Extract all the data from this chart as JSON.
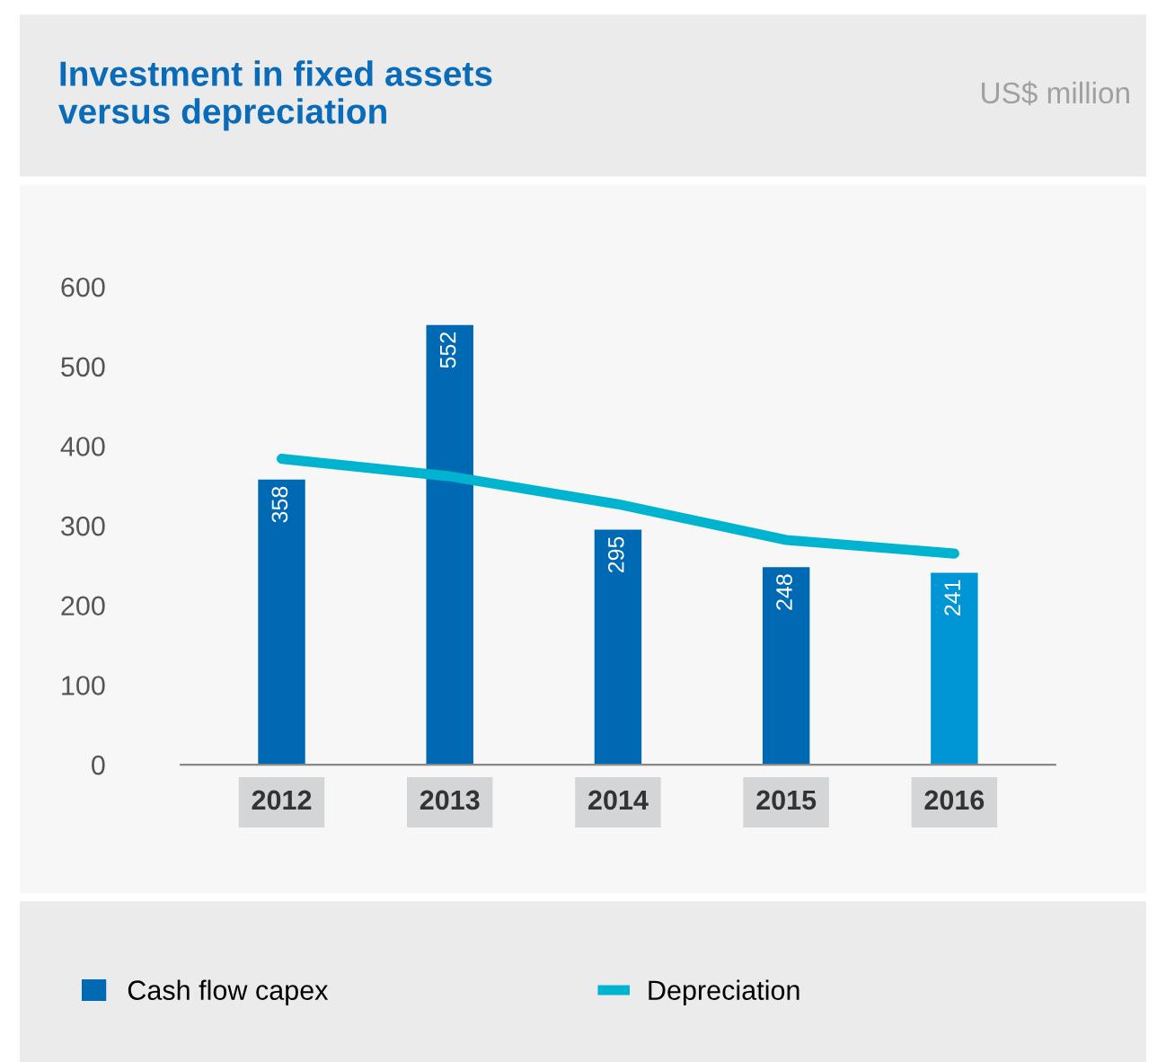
{
  "chart_data": {
    "type": "bar",
    "title": "Investment in fixed assets\nversus depreciation",
    "subtitle": "US$ million",
    "categories": [
      "2012",
      "2013",
      "2014",
      "2015",
      "2016"
    ],
    "series": [
      {
        "name": "Cash flow capex",
        "color": "#0069b4",
        "colors": [
          "#0069b4",
          "#0069b4",
          "#0069b4",
          "#0069b4",
          "#0096d6"
        ],
        "values": [
          358,
          552,
          295,
          248,
          241
        ],
        "data_labels": true
      },
      {
        "name": "Depreciation",
        "type": "line",
        "color": "#00b4d0",
        "values": [
          384,
          362,
          327,
          282,
          265
        ]
      }
    ],
    "ylim": [
      0,
      600
    ],
    "yticks": [
      0,
      100,
      200,
      300,
      400,
      500,
      600
    ],
    "grid": false,
    "legend": "bottom"
  }
}
